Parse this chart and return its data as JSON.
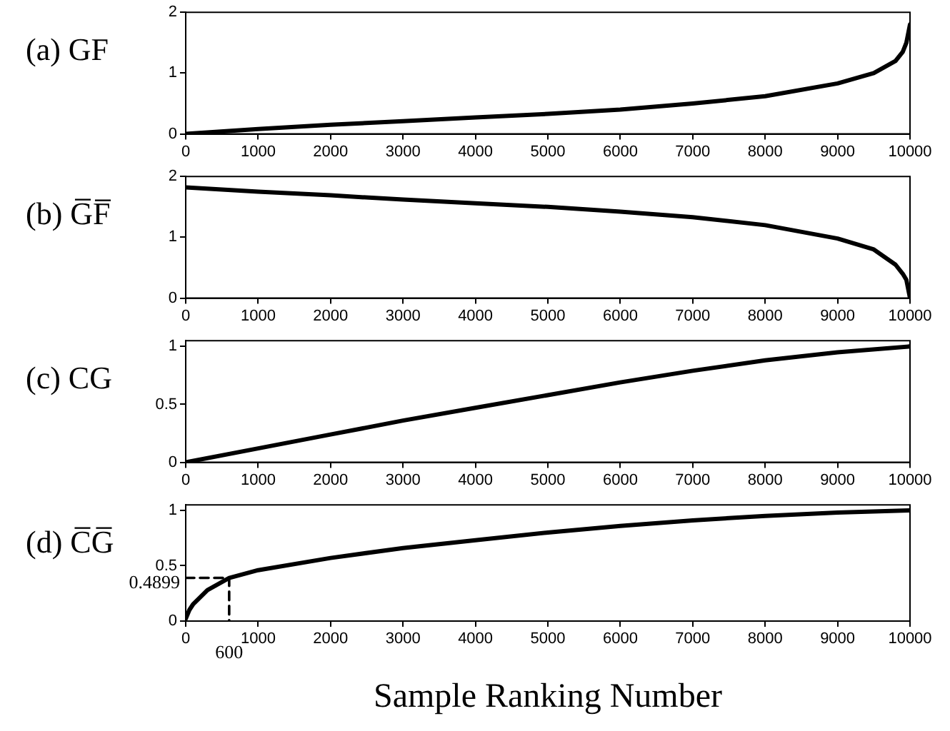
{
  "chart_data": [
    {
      "type": "line",
      "title": "(a) GF",
      "xlim": [
        0,
        10000
      ],
      "xticks": [
        0,
        1000,
        2000,
        3000,
        4000,
        5000,
        6000,
        7000,
        8000,
        9000,
        10000
      ],
      "ylim": [
        0,
        2
      ],
      "yticks": [
        0,
        1,
        2
      ],
      "grid": false,
      "legend": false,
      "marker": "none",
      "line_style": "solid",
      "series": [
        {
          "color": "#000000",
          "x": [
            0,
            1000,
            2000,
            3000,
            4000,
            5000,
            6000,
            7000,
            8000,
            9000,
            9500,
            9800,
            9900,
            9950,
            10000
          ],
          "values": [
            0,
            0.08,
            0.15,
            0.21,
            0.27,
            0.33,
            0.4,
            0.5,
            0.62,
            0.83,
            1.0,
            1.2,
            1.35,
            1.5,
            1.8
          ]
        }
      ]
    },
    {
      "type": "line",
      "title": "(b) G̅F̅",
      "xlim": [
        0,
        10000
      ],
      "xticks": [
        0,
        1000,
        2000,
        3000,
        4000,
        5000,
        6000,
        7000,
        8000,
        9000,
        10000
      ],
      "ylim": [
        0,
        2
      ],
      "yticks": [
        0,
        1,
        2
      ],
      "grid": false,
      "legend": false,
      "marker": "none",
      "line_style": "solid",
      "series": [
        {
          "color": "#000000",
          "x": [
            0,
            1000,
            2000,
            3000,
            4000,
            5000,
            6000,
            7000,
            8000,
            9000,
            9500,
            9800,
            9900,
            9950,
            10000
          ],
          "values": [
            1.82,
            1.75,
            1.69,
            1.62,
            1.56,
            1.5,
            1.42,
            1.33,
            1.2,
            0.98,
            0.8,
            0.55,
            0.4,
            0.3,
            0
          ]
        }
      ]
    },
    {
      "type": "line",
      "title": "(c) CG",
      "xlim": [
        0,
        10000
      ],
      "xticks": [
        0,
        1000,
        2000,
        3000,
        4000,
        5000,
        6000,
        7000,
        8000,
        9000,
        10000
      ],
      "ylim": [
        0,
        1.05
      ],
      "yticks": [
        0,
        0.5,
        1
      ],
      "grid": false,
      "legend": false,
      "marker": "none",
      "line_style": "solid",
      "series": [
        {
          "color": "#000000",
          "x": [
            0,
            1000,
            2000,
            3000,
            4000,
            5000,
            6000,
            7000,
            8000,
            9000,
            10000
          ],
          "values": [
            0,
            0.12,
            0.24,
            0.36,
            0.47,
            0.58,
            0.69,
            0.79,
            0.88,
            0.95,
            1.0
          ]
        }
      ]
    },
    {
      "type": "line",
      "title": "(d) C̅G̅",
      "xlabel": "Sample Ranking Number",
      "xlim": [
        0,
        10000
      ],
      "xticks": [
        0,
        1000,
        2000,
        3000,
        4000,
        5000,
        6000,
        7000,
        8000,
        9000,
        10000
      ],
      "ylim": [
        0,
        1.05
      ],
      "yticks": [
        0,
        0.5,
        1
      ],
      "grid": false,
      "legend": false,
      "marker": "none",
      "line_style": "solid",
      "annotations": [
        {
          "text": "0.4899",
          "x": 0,
          "y": 0.39
        },
        {
          "text": "600",
          "x": 600,
          "y": 0
        }
      ],
      "series": [
        {
          "color": "#000000",
          "x": [
            0,
            50,
            100,
            300,
            600,
            1000,
            2000,
            3000,
            4000,
            5000,
            6000,
            7000,
            8000,
            9000,
            10000
          ],
          "values": [
            0.02,
            0.1,
            0.15,
            0.28,
            0.39,
            0.46,
            0.57,
            0.66,
            0.73,
            0.8,
            0.86,
            0.91,
            0.95,
            0.98,
            1.0
          ]
        },
        {
          "type": "line",
          "color": "#000000",
          "line_style": "dashed",
          "x": [
            0,
            600,
            600
          ],
          "values": [
            0.39,
            0.39,
            0
          ]
        }
      ]
    }
  ]
}
